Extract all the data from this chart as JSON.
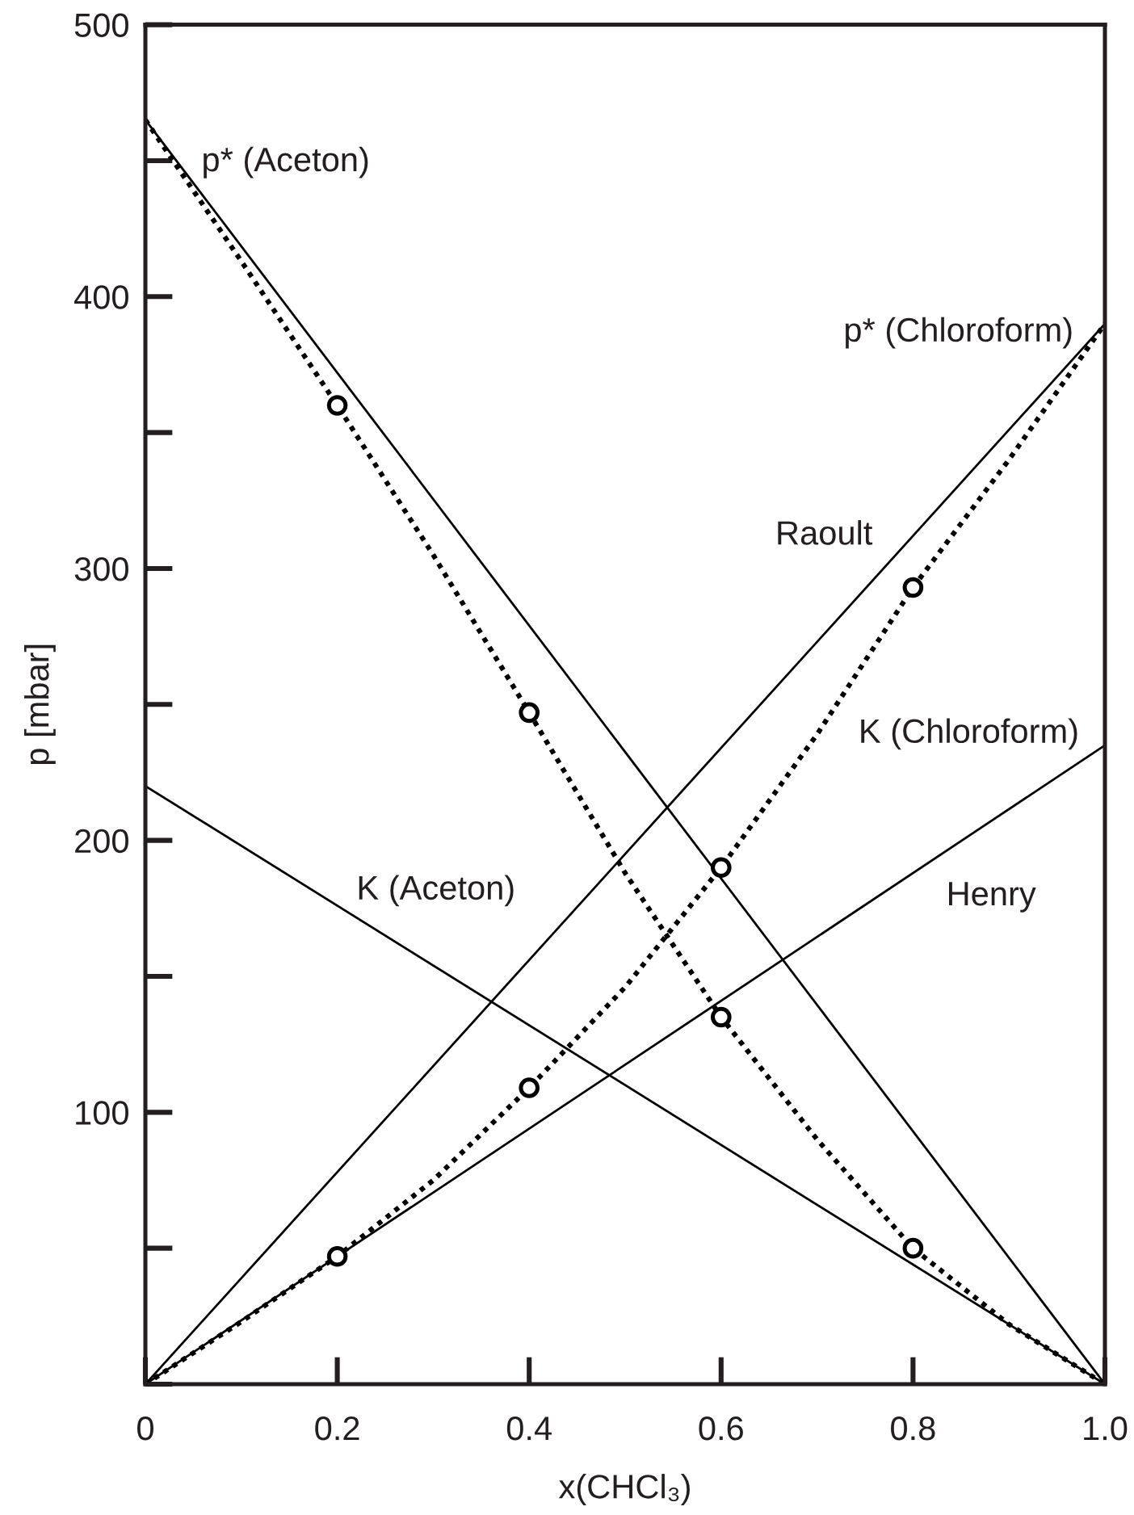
{
  "chart_data": {
    "type": "line",
    "xlabel": "x(CHCl₃)",
    "ylabel": "p [mbar]",
    "xlim": [
      0,
      1
    ],
    "ylim": [
      0,
      500
    ],
    "xticks": [
      0,
      0.2,
      0.4,
      0.6,
      0.8,
      {
        "value": 1,
        "label": "1.0"
      }
    ],
    "yticks": [
      100,
      200,
      300,
      400,
      500
    ],
    "series": [
      {
        "x": [
          0,
          1
        ],
        "values": [
          465,
          0
        ],
        "color": "#000000",
        "line_style": "solid",
        "marker": "none"
      },
      {
        "x": [
          0,
          1
        ],
        "values": [
          0,
          390
        ],
        "color": "#000000",
        "line_style": "solid",
        "marker": "none"
      },
      {
        "x": [
          0,
          1
        ],
        "values": [
          220,
          0
        ],
        "color": "#000000",
        "line_style": "solid",
        "marker": "none"
      },
      {
        "x": [
          0,
          1
        ],
        "values": [
          0,
          235
        ],
        "color": "#000000",
        "line_style": "solid",
        "marker": "none"
      },
      {
        "x": [
          0,
          0.1,
          0.2,
          0.3,
          0.4,
          0.5,
          0.6,
          0.7,
          0.8,
          0.9,
          1
        ],
        "values": [
          465,
          413,
          360,
          305,
          247,
          188,
          135,
          90,
          50,
          22,
          0
        ],
        "color": "#000000",
        "line_style": "dotted",
        "marker": "none"
      },
      {
        "x": [
          0,
          0.1,
          0.2,
          0.3,
          0.4,
          0.5,
          0.6,
          0.7,
          0.8,
          0.9,
          1
        ],
        "values": [
          0,
          23,
          47,
          75,
          109,
          146,
          190,
          239,
          293,
          340,
          390
        ],
        "color": "#000000",
        "line_style": "dotted",
        "marker": "none"
      },
      {
        "type": "scatter",
        "x": [
          0.2,
          0.4,
          0.6,
          0.8
        ],
        "values": [
          360,
          247,
          135,
          50
        ],
        "color": "#000000",
        "marker": "circle"
      },
      {
        "type": "scatter",
        "x": [
          0.2,
          0.4,
          0.6,
          0.8
        ],
        "values": [
          47,
          109,
          190,
          293
        ],
        "color": "#000000",
        "marker": "circle"
      }
    ],
    "annotations": [
      {
        "text": "p* (Aceton)",
        "x": 0,
        "y": 465
      },
      {
        "text": "p* (Chloroform)",
        "x": 1,
        "y": 390
      },
      {
        "text": "Raoult",
        "x": 0.8,
        "y": 312
      },
      {
        "text": "K (Chloroform)",
        "x": 1,
        "y": 235
      },
      {
        "text": "K (Aceton)",
        "x": 0.22,
        "y": 172
      },
      {
        "text": "Henry",
        "x": 0.83,
        "y": 195
      }
    ]
  }
}
